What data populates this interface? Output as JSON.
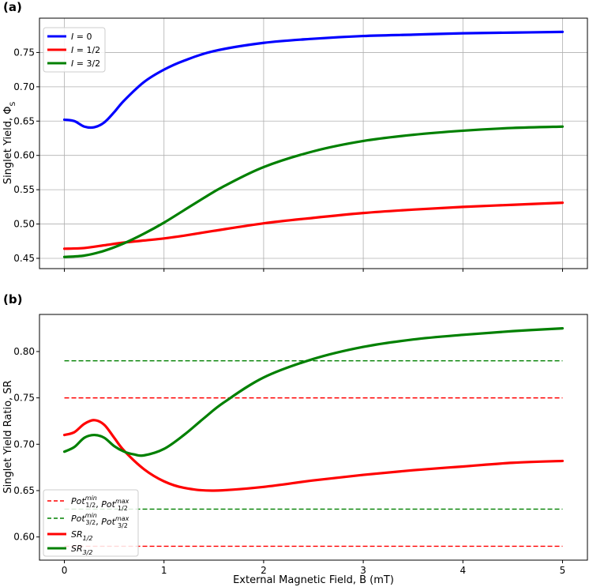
{
  "chart_data": [
    {
      "panel_label": "(a)",
      "type": "line",
      "ylabel": "Singlet Yield, Φ",
      "ylabel_sub": "S",
      "xlim": [
        -0.25,
        5.25
      ],
      "ylim": [
        0.435,
        0.8
      ],
      "xticks": [
        0,
        1,
        2,
        3,
        4,
        5
      ],
      "xtick_labels_visible": false,
      "yticks": [
        0.45,
        0.5,
        0.55,
        0.6,
        0.65,
        0.7,
        0.75
      ],
      "ytick_labels": [
        "0.45",
        "0.50",
        "0.55",
        "0.60",
        "0.65",
        "0.70",
        "0.75"
      ],
      "grid": true,
      "legend": "top-left",
      "series": [
        {
          "base": "I",
          "post": " = 0",
          "color": "#0000ff",
          "x": [
            0,
            0.1,
            0.2,
            0.3,
            0.4,
            0.5,
            0.6,
            0.8,
            1.0,
            1.2,
            1.5,
            2.0,
            2.5,
            3.0,
            3.5,
            4.0,
            4.5,
            5.0
          ],
          "y": [
            0.652,
            0.65,
            0.642,
            0.641,
            0.648,
            0.663,
            0.68,
            0.707,
            0.725,
            0.738,
            0.752,
            0.764,
            0.77,
            0.774,
            0.776,
            0.778,
            0.779,
            0.78
          ]
        },
        {
          "base": "I",
          "post": " = 1/2",
          "color": "#ff0000",
          "x": [
            0,
            0.2,
            0.4,
            0.6,
            0.8,
            1.0,
            1.2,
            1.5,
            2.0,
            2.5,
            3.0,
            3.5,
            4.0,
            4.5,
            5.0
          ],
          "y": [
            0.464,
            0.465,
            0.469,
            0.473,
            0.476,
            0.479,
            0.483,
            0.49,
            0.501,
            0.509,
            0.516,
            0.521,
            0.525,
            0.528,
            0.531
          ]
        },
        {
          "base": "I",
          "post": " = 3/2",
          "color": "#008000",
          "x": [
            0,
            0.2,
            0.4,
            0.6,
            0.8,
            1.0,
            1.2,
            1.4,
            1.6,
            2.0,
            2.5,
            3.0,
            3.5,
            4.0,
            4.5,
            5.0
          ],
          "y": [
            0.452,
            0.454,
            0.461,
            0.472,
            0.486,
            0.502,
            0.52,
            0.538,
            0.555,
            0.583,
            0.606,
            0.621,
            0.63,
            0.636,
            0.64,
            0.642
          ]
        }
      ]
    },
    {
      "panel_label": "(b)",
      "type": "line",
      "xlabel": "External Magnetic Field, B (mT)",
      "ylabel": "Singlet Yield Ratio, SR",
      "xlim": [
        -0.25,
        5.25
      ],
      "ylim": [
        0.575,
        0.84
      ],
      "xticks": [
        0,
        1,
        2,
        3,
        4,
        5
      ],
      "xtick_labels": [
        "0",
        "1",
        "2",
        "3",
        "4",
        "5"
      ],
      "yticks": [
        0.6,
        0.65,
        0.7,
        0.75,
        0.8
      ],
      "ytick_labels": [
        "0.60",
        "0.65",
        "0.70",
        "0.75",
        "0.80"
      ],
      "grid": false,
      "legend": "bottom-left",
      "hlines": [
        {
          "y": 0.75,
          "color": "#ff0000"
        },
        {
          "y": 0.59,
          "color": "#ff0000"
        },
        {
          "y": 0.79,
          "color": "#008000"
        },
        {
          "y": 0.63,
          "color": "#008000"
        }
      ],
      "series": [
        {
          "base": "SR",
          "sub": "1/2",
          "color": "#ff0000",
          "x": [
            0,
            0.1,
            0.2,
            0.3,
            0.4,
            0.5,
            0.6,
            0.8,
            1.0,
            1.2,
            1.5,
            2.0,
            2.5,
            3.0,
            3.5,
            4.0,
            4.5,
            5.0
          ],
          "y": [
            0.71,
            0.713,
            0.722,
            0.726,
            0.721,
            0.707,
            0.693,
            0.673,
            0.66,
            0.653,
            0.65,
            0.654,
            0.661,
            0.667,
            0.672,
            0.676,
            0.68,
            0.682
          ]
        },
        {
          "base": "SR",
          "sub": "3/2",
          "color": "#008000",
          "x": [
            0,
            0.1,
            0.2,
            0.3,
            0.4,
            0.5,
            0.6,
            0.7,
            0.8,
            1.0,
            1.2,
            1.4,
            1.6,
            2.0,
            2.5,
            3.0,
            3.5,
            4.0,
            4.5,
            5.0
          ],
          "y": [
            0.692,
            0.697,
            0.707,
            0.71,
            0.707,
            0.698,
            0.692,
            0.689,
            0.688,
            0.695,
            0.71,
            0.728,
            0.745,
            0.772,
            0.792,
            0.805,
            0.813,
            0.818,
            0.822,
            0.825
          ]
        }
      ],
      "legend_entries": [
        {
          "style": "dashed",
          "color": "#ff0000",
          "p1": "Pot",
          "sub1": "1/2",
          "sup1": "min",
          "sep": ", ",
          "p2": "Pot",
          "sub2": "1/2",
          "sup2": "max"
        },
        {
          "style": "dashed",
          "color": "#008000",
          "p1": "Pot",
          "sub1": "3/2",
          "sup1": "min",
          "sep": ", ",
          "p2": "Pot",
          "sub2": "3/2",
          "sup2": "max"
        },
        {
          "style": "solid",
          "color": "#ff0000",
          "p1": "SR",
          "sub1": "1/2"
        },
        {
          "style": "solid",
          "color": "#008000",
          "p1": "SR",
          "sub1": "3/2"
        }
      ]
    }
  ]
}
